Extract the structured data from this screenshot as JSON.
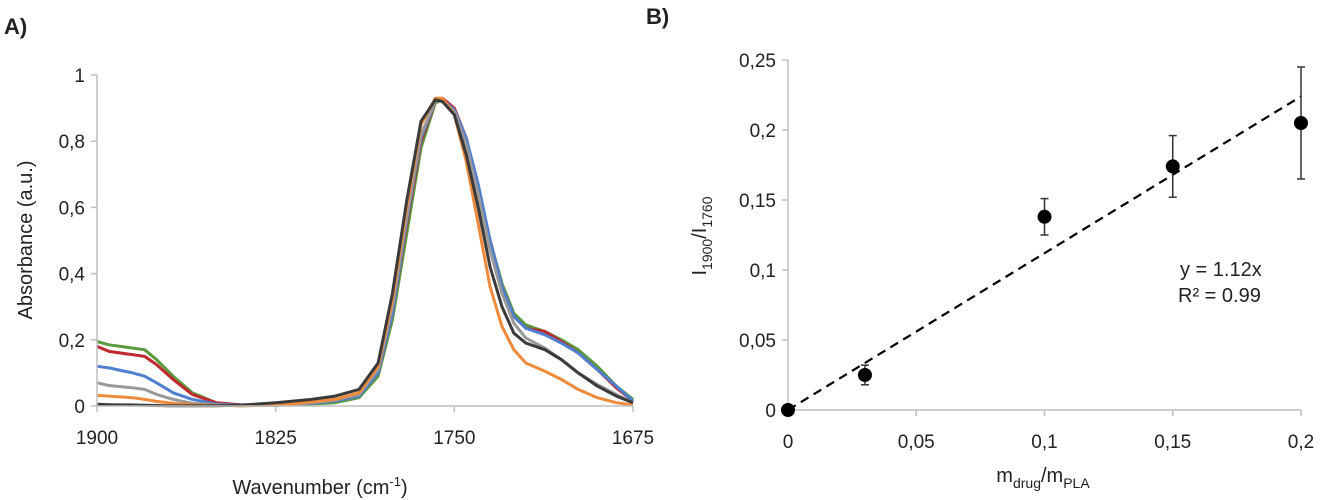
{
  "panels": {
    "a_label": "A)",
    "b_label": "B)"
  },
  "chart_data": [
    {
      "type": "line",
      "xlabel": "Wavenumber (cm-1)",
      "xlabel_parts": {
        "main": "Wavenumber (cm",
        "sup": "-1",
        "end": ")"
      },
      "ylabel": "Absorbance (a.u.)",
      "xlim": [
        1900,
        1675
      ],
      "x_reversed": true,
      "ylim": [
        0,
        1
      ],
      "xticks": [
        1900,
        1825,
        1750,
        1675
      ],
      "xtick_labels": [
        "1900",
        "1825",
        "1750",
        "1675"
      ],
      "yticks": [
        0,
        0.2,
        0.4,
        0.6,
        0.8,
        1
      ],
      "ytick_labels": [
        "0",
        "0,2",
        "0,4",
        "0,6",
        "0,8",
        "1"
      ],
      "grid": false,
      "series": [
        {
          "color": "#5b9a3c",
          "peak_x": 1755,
          "peak_y": 0.925,
          "width_left": 16,
          "width_right": 20,
          "points": [
            [
              1900,
              0.195
            ],
            [
              1895,
              0.185
            ],
            [
              1885,
              0.175
            ],
            [
              1880,
              0.17
            ],
            [
              1875,
              0.14
            ],
            [
              1868,
              0.09
            ],
            [
              1860,
              0.04
            ],
            [
              1850,
              0.01
            ],
            [
              1840,
              0.003
            ],
            [
              1825,
              0.002
            ],
            [
              1810,
              0.006
            ],
            [
              1800,
              0.01
            ],
            [
              1790,
              0.025
            ],
            [
              1782,
              0.09
            ],
            [
              1776,
              0.26
            ],
            [
              1770,
              0.52
            ],
            [
              1764,
              0.78
            ],
            [
              1758,
              0.915
            ],
            [
              1755,
              0.925
            ],
            [
              1750,
              0.89
            ],
            [
              1745,
              0.8
            ],
            [
              1740,
              0.66
            ],
            [
              1735,
              0.5
            ],
            [
              1730,
              0.37
            ],
            [
              1725,
              0.28
            ],
            [
              1720,
              0.245
            ],
            [
              1712,
              0.225
            ],
            [
              1705,
              0.2
            ],
            [
              1698,
              0.17
            ],
            [
              1690,
              0.12
            ],
            [
              1682,
              0.06
            ],
            [
              1675,
              0.02
            ]
          ]
        },
        {
          "color": "#c0282d",
          "points": [
            [
              1900,
              0.18
            ],
            [
              1895,
              0.165
            ],
            [
              1885,
              0.155
            ],
            [
              1880,
              0.15
            ],
            [
              1875,
              0.125
            ],
            [
              1868,
              0.08
            ],
            [
              1860,
              0.035
            ],
            [
              1850,
              0.01
            ],
            [
              1840,
              0.004
            ],
            [
              1825,
              0.003
            ],
            [
              1810,
              0.012
            ],
            [
              1800,
              0.02
            ],
            [
              1790,
              0.035
            ],
            [
              1782,
              0.1
            ],
            [
              1776,
              0.28
            ],
            [
              1770,
              0.55
            ],
            [
              1764,
              0.8
            ],
            [
              1758,
              0.92
            ],
            [
              1755,
              0.93
            ],
            [
              1750,
              0.9
            ],
            [
              1745,
              0.81
            ],
            [
              1740,
              0.66
            ],
            [
              1735,
              0.5
            ],
            [
              1730,
              0.36
            ],
            [
              1725,
              0.27
            ],
            [
              1720,
              0.235
            ],
            [
              1712,
              0.225
            ],
            [
              1705,
              0.195
            ],
            [
              1698,
              0.16
            ],
            [
              1690,
              0.11
            ],
            [
              1682,
              0.055
            ],
            [
              1675,
              0.015
            ]
          ]
        },
        {
          "color": "#4f7fd0",
          "points": [
            [
              1900,
              0.12
            ],
            [
              1895,
              0.115
            ],
            [
              1885,
              0.1
            ],
            [
              1880,
              0.09
            ],
            [
              1875,
              0.07
            ],
            [
              1868,
              0.04
            ],
            [
              1860,
              0.02
            ],
            [
              1850,
              0.006
            ],
            [
              1840,
              0.002
            ],
            [
              1825,
              0.002
            ],
            [
              1810,
              0.008
            ],
            [
              1800,
              0.015
            ],
            [
              1790,
              0.03
            ],
            [
              1782,
              0.1
            ],
            [
              1776,
              0.28
            ],
            [
              1770,
              0.56
            ],
            [
              1764,
              0.81
            ],
            [
              1758,
              0.92
            ],
            [
              1755,
              0.925
            ],
            [
              1750,
              0.895
            ],
            [
              1745,
              0.81
            ],
            [
              1740,
              0.67
            ],
            [
              1735,
              0.5
            ],
            [
              1730,
              0.36
            ],
            [
              1725,
              0.27
            ],
            [
              1720,
              0.235
            ],
            [
              1712,
              0.215
            ],
            [
              1705,
              0.19
            ],
            [
              1698,
              0.16
            ],
            [
              1690,
              0.11
            ],
            [
              1682,
              0.06
            ],
            [
              1675,
              0.015
            ]
          ]
        },
        {
          "color": "#999999",
          "points": [
            [
              1900,
              0.07
            ],
            [
              1895,
              0.062
            ],
            [
              1885,
              0.055
            ],
            [
              1880,
              0.05
            ],
            [
              1875,
              0.035
            ],
            [
              1868,
              0.02
            ],
            [
              1860,
              0.008
            ],
            [
              1850,
              0.003
            ],
            [
              1840,
              0.001
            ],
            [
              1825,
              0.002
            ],
            [
              1810,
              0.01
            ],
            [
              1800,
              0.018
            ],
            [
              1790,
              0.035
            ],
            [
              1782,
              0.11
            ],
            [
              1776,
              0.3
            ],
            [
              1770,
              0.57
            ],
            [
              1764,
              0.82
            ],
            [
              1758,
              0.92
            ],
            [
              1755,
              0.922
            ],
            [
              1750,
              0.89
            ],
            [
              1745,
              0.79
            ],
            [
              1740,
              0.64
            ],
            [
              1735,
              0.47
            ],
            [
              1730,
              0.34
            ],
            [
              1725,
              0.25
            ],
            [
              1720,
              0.205
            ],
            [
              1712,
              0.175
            ],
            [
              1705,
              0.14
            ],
            [
              1698,
              0.1
            ],
            [
              1690,
              0.065
            ],
            [
              1682,
              0.035
            ],
            [
              1675,
              0.01
            ]
          ]
        },
        {
          "color": "#ee8a3a",
          "points": [
            [
              1900,
              0.032
            ],
            [
              1895,
              0.03
            ],
            [
              1885,
              0.025
            ],
            [
              1880,
              0.02
            ],
            [
              1875,
              0.014
            ],
            [
              1868,
              0.008
            ],
            [
              1860,
              0.004
            ],
            [
              1850,
              0.002
            ],
            [
              1840,
              0.001
            ],
            [
              1825,
              0.002
            ],
            [
              1810,
              0.012
            ],
            [
              1800,
              0.02
            ],
            [
              1790,
              0.04
            ],
            [
              1782,
              0.12
            ],
            [
              1776,
              0.32
            ],
            [
              1770,
              0.6
            ],
            [
              1764,
              0.85
            ],
            [
              1758,
              0.93
            ],
            [
              1755,
              0.93
            ],
            [
              1750,
              0.88
            ],
            [
              1745,
              0.74
            ],
            [
              1740,
              0.55
            ],
            [
              1735,
              0.36
            ],
            [
              1730,
              0.24
            ],
            [
              1725,
              0.17
            ],
            [
              1720,
              0.13
            ],
            [
              1712,
              0.105
            ],
            [
              1705,
              0.08
            ],
            [
              1698,
              0.05
            ],
            [
              1690,
              0.025
            ],
            [
              1682,
              0.01
            ],
            [
              1675,
              0.003
            ]
          ]
        },
        {
          "color": "#3a3a3a",
          "points": [
            [
              1900,
              0.005
            ],
            [
              1895,
              0.004
            ],
            [
              1885,
              0.003
            ],
            [
              1880,
              0.002
            ],
            [
              1870,
              0.001
            ],
            [
              1860,
              0.001
            ],
            [
              1850,
              0.001
            ],
            [
              1840,
              0.002
            ],
            [
              1825,
              0.01
            ],
            [
              1810,
              0.02
            ],
            [
              1800,
              0.03
            ],
            [
              1790,
              0.05
            ],
            [
              1782,
              0.13
            ],
            [
              1776,
              0.34
            ],
            [
              1770,
              0.62
            ],
            [
              1764,
              0.86
            ],
            [
              1758,
              0.925
            ],
            [
              1755,
              0.92
            ],
            [
              1750,
              0.88
            ],
            [
              1745,
              0.76
            ],
            [
              1740,
              0.6
            ],
            [
              1735,
              0.42
            ],
            [
              1730,
              0.3
            ],
            [
              1725,
              0.22
            ],
            [
              1720,
              0.19
            ],
            [
              1712,
              0.17
            ],
            [
              1705,
              0.14
            ],
            [
              1698,
              0.1
            ],
            [
              1690,
              0.06
            ],
            [
              1682,
              0.03
            ],
            [
              1675,
              0.01
            ]
          ]
        }
      ]
    },
    {
      "type": "scatter",
      "xlabel": "mdrug/mPLA",
      "xlabel_parts": {
        "m1": "m",
        "s1": "drug",
        "slash": "/m",
        "s2": "PLA"
      },
      "ylabel": "I1900/I1760",
      "ylabel_parts": {
        "i1": "I",
        "s1": "1900",
        "slash": "/I",
        "s2": "1760"
      },
      "xlim": [
        0,
        0.2
      ],
      "ylim": [
        0,
        0.25
      ],
      "xticks": [
        0,
        0.05,
        0.1,
        0.15,
        0.2
      ],
      "xtick_labels": [
        "0",
        "0,05",
        "0,1",
        "0,15",
        "0,2"
      ],
      "yticks": [
        0,
        0.05,
        0.1,
        0.15,
        0.2,
        0.25
      ],
      "ytick_labels": [
        "0",
        "0,05",
        "0,1",
        "0,15",
        "0,2",
        "0,25"
      ],
      "grid": false,
      "x": [
        0,
        0.03,
        0.1,
        0.15,
        0.2
      ],
      "y": [
        0.0,
        0.025,
        0.138,
        0.174,
        0.205
      ],
      "error": [
        0,
        0.007,
        0.013,
        0.022,
        0.04
      ],
      "fit": {
        "slope": 1.12,
        "x_range": [
          0,
          0.2
        ]
      },
      "annotations": {
        "equation": "y = 1.12x",
        "r2": "R² = 0.99"
      },
      "marker_color": "#000000"
    }
  ]
}
